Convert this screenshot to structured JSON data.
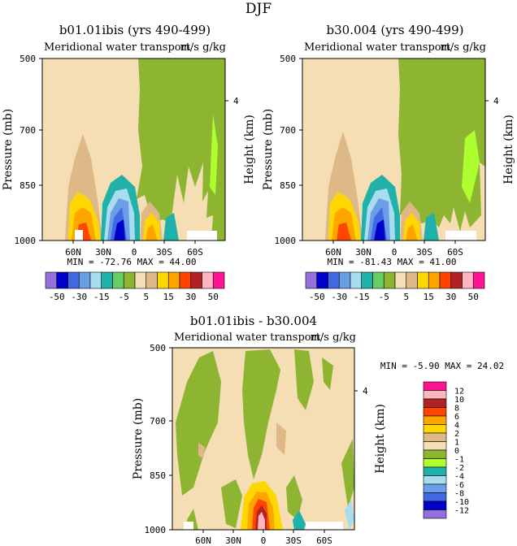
{
  "figure": {
    "title": "DJF"
  },
  "panels": [
    {
      "title": "b01.01ibis (yrs 490-499)",
      "subtitle_left": "Meridional water transport",
      "subtitle_right": "m/s g/kg",
      "ylabel": "Pressure (mb)",
      "ylabel_right": "Height (km)",
      "stats": "MIN = -72.76 MAX = 44.00"
    },
    {
      "title": "b30.004 (yrs 490-499)",
      "subtitle_left": "Meridional water transport",
      "subtitle_right": "m/s g/kg",
      "ylabel": "Pressure (mb)",
      "ylabel_right": "Height (km)",
      "stats": "MIN = -81.43 MAX = 41.00"
    },
    {
      "title": "b01.01ibis - b30.004",
      "subtitle_left": "Meridional water transport",
      "subtitle_right": "m/s g/kg",
      "ylabel": "Pressure (mb)",
      "ylabel_right": "Height (km)",
      "stats": "MIN = -5.90 MAX = 24.02"
    }
  ],
  "colorbar_top": {
    "labels": [
      "-50",
      "-30",
      "-15",
      "-5",
      "5",
      "15",
      "30",
      "50"
    ],
    "colors": [
      "#9370db",
      "#0000cd",
      "#4169e1",
      "#6a9fe8",
      "#a9dcee",
      "#20b2aa",
      "#66cc66",
      "#8db531",
      "#f5deb3",
      "#deb887",
      "#ffd700",
      "#ffa500",
      "#ff4500",
      "#b22222",
      "#ffb6c1",
      "#ff1493"
    ]
  },
  "colorbar_diff": {
    "labels": [
      "12",
      "10",
      "8",
      "6",
      "4",
      "2",
      "1",
      "0",
      "-1",
      "-2",
      "-4",
      "-6",
      "-8",
      "-10",
      "-12"
    ],
    "colors": [
      "#ff1493",
      "#ffb6c1",
      "#b22222",
      "#ff4500",
      "#ffa500",
      "#ffd700",
      "#deb887",
      "#f5deb3",
      "#8db531",
      "#adff2f",
      "#20b2aa",
      "#a9dcee",
      "#6a9fe8",
      "#4169e1",
      "#0000cd",
      "#9370db"
    ]
  },
  "chart_data": [
    {
      "type": "heatmap",
      "title": "b01.01ibis (yrs 490-499)",
      "xticks": [
        "60N",
        "30N",
        "0",
        "30S",
        "60S"
      ],
      "yticks": [
        "500",
        "700",
        "850",
        "1000"
      ],
      "ytick_right": [
        "4"
      ],
      "min": -72.76,
      "max": 44.0
    },
    {
      "type": "heatmap",
      "title": "b30.004 (yrs 490-499)",
      "xticks": [
        "60N",
        "30N",
        "0",
        "30S",
        "60S"
      ],
      "yticks": [
        "500",
        "700",
        "850",
        "1000"
      ],
      "ytick_right": [
        "4"
      ],
      "min": -81.43,
      "max": 41.0
    },
    {
      "type": "heatmap",
      "title": "b01.01ibis - b30.004",
      "xticks": [
        "60N",
        "30N",
        "0",
        "30S",
        "60S"
      ],
      "yticks": [
        "500",
        "700",
        "850",
        "1000"
      ],
      "ytick_right": [
        "4"
      ],
      "min": -5.9,
      "max": 24.02
    }
  ]
}
